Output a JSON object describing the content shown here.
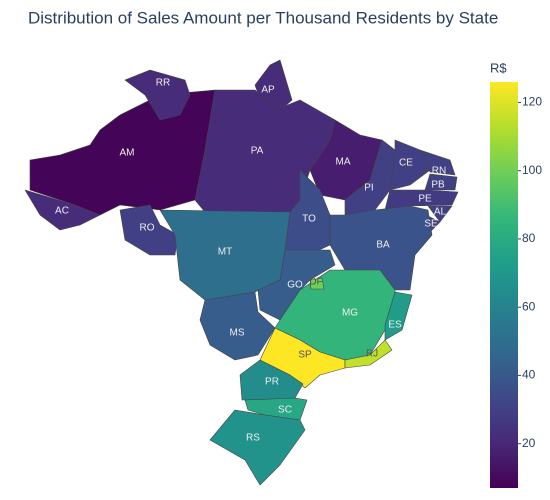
{
  "chart_data": {
    "type": "choropleth",
    "title": "Distribution of Sales Amount per Thousand Residents by State",
    "colorbar_title": "R$",
    "colorscale": "Viridis",
    "locations": [
      "AM",
      "AC",
      "RR",
      "AP",
      "PA",
      "MA",
      "PI",
      "CE",
      "RN",
      "PB",
      "PE",
      "AL",
      "SE",
      "BA",
      "TO",
      "RO",
      "MT",
      "GO",
      "MS",
      "MG",
      "ES",
      "SP",
      "RJ",
      "PR",
      "SC",
      "RS",
      "DF"
    ],
    "values": [
      8,
      22,
      22,
      22,
      22,
      17,
      30,
      30,
      30,
      30,
      28,
      30,
      30,
      38,
      35,
      30,
      50,
      42,
      42,
      85,
      72,
      126,
      115,
      65,
      78,
      68,
      100
    ],
    "zlim": [
      7,
      126
    ],
    "zticks": [
      20,
      40,
      60,
      80,
      100,
      120
    ]
  }
}
